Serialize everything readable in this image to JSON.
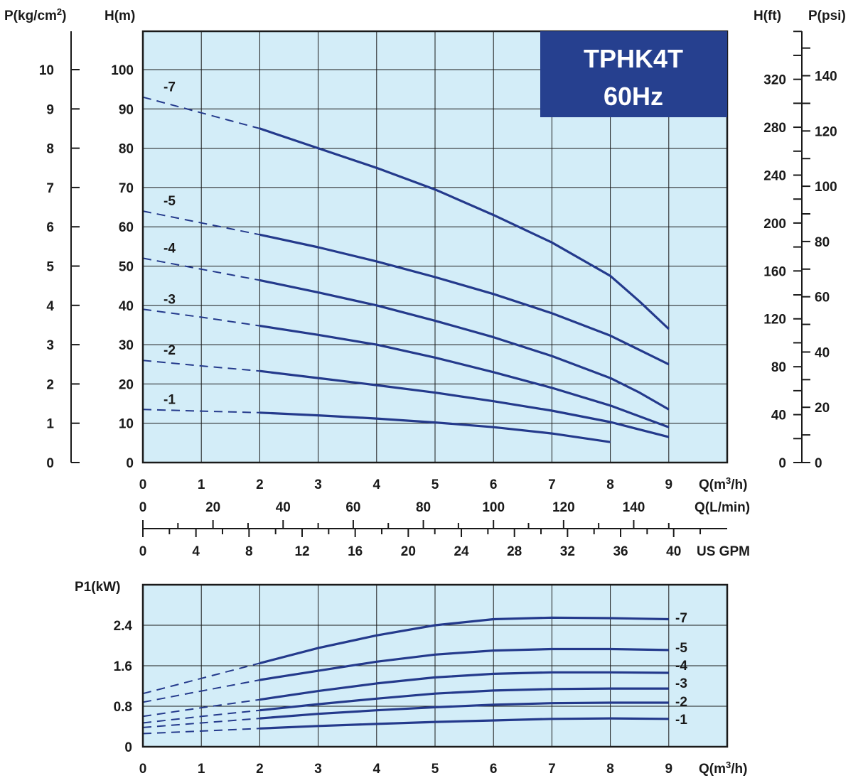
{
  "badge": {
    "model": "TPHK4T",
    "freq": "60Hz",
    "bg_color": "#26408f"
  },
  "colors": {
    "plot_bg": "#d3edf8",
    "curve": "#243a8c",
    "grid": "#1a1a1a"
  },
  "chart_data": [
    {
      "type": "line",
      "title": "",
      "xlabel": "Q(m3/h)",
      "ylabel": "H(m)",
      "xlim": [
        0,
        10
      ],
      "ylim": [
        0,
        110
      ],
      "grid": true,
      "xticks": [
        "0",
        "1",
        "2",
        "3",
        "4",
        "5",
        "6",
        "7",
        "8",
        "9"
      ],
      "yticks": [
        "0",
        "10",
        "20",
        "30",
        "40",
        "50",
        "60",
        "70",
        "80",
        "90",
        "100"
      ],
      "axis_labels": {
        "left_outer": "P(kg/cm2)",
        "left_inner": "H(m)",
        "right_inner": "H(ft)",
        "right_outer": "P(psi)",
        "x_m3h": "Q(m3/h)",
        "x_lmin": "Q(L/min)",
        "x_gpm": "US GPM"
      },
      "kgcm2_ticks": [
        "0",
        "1",
        "2",
        "3",
        "4",
        "5",
        "6",
        "7",
        "8",
        "9",
        "10"
      ],
      "ft_ticks": [
        "0",
        "40",
        "80",
        "120",
        "160",
        "200",
        "240",
        "280",
        "320"
      ],
      "psi_ticks": [
        "0",
        "20",
        "40",
        "60",
        "80",
        "100",
        "120",
        "140"
      ],
      "lmin_ticks": [
        "0",
        "20",
        "40",
        "60",
        "80",
        "100",
        "120",
        "140"
      ],
      "gpm_ticks": [
        "0",
        "4",
        "8",
        "12",
        "16",
        "20",
        "24",
        "28",
        "32",
        "36",
        "40"
      ],
      "series": [
        {
          "name": "-7",
          "dashed_until": 2,
          "x": [
            0,
            1,
            2,
            3,
            4,
            5,
            6,
            7,
            8,
            8.5,
            9
          ],
          "y": [
            93,
            89,
            85,
            80,
            75,
            69.5,
            63,
            56,
            47.5,
            41,
            34
          ]
        },
        {
          "name": "-5",
          "dashed_until": 2,
          "x": [
            0,
            1,
            2,
            3,
            4,
            5,
            6,
            7,
            8,
            9
          ],
          "y": [
            64,
            61,
            58,
            54.8,
            51.2,
            47.2,
            42.9,
            38,
            32.3,
            25
          ]
        },
        {
          "name": "-4",
          "dashed_until": 2,
          "x": [
            0,
            1,
            2,
            3,
            4,
            5,
            6,
            7,
            8,
            8.5,
            9
          ],
          "y": [
            52,
            49.2,
            46.4,
            43.3,
            40,
            36.1,
            31.9,
            27.1,
            21.5,
            17.8,
            13.5
          ]
        },
        {
          "name": "-3",
          "dashed_until": 2,
          "x": [
            0,
            1,
            2,
            3,
            4,
            5,
            6,
            7,
            8,
            9
          ],
          "y": [
            39,
            37,
            34.8,
            32.5,
            30,
            26.7,
            23,
            19,
            14.5,
            9
          ]
        },
        {
          "name": "-2",
          "dashed_until": 2,
          "x": [
            0,
            1,
            2,
            3,
            4,
            5,
            6,
            7,
            8,
            9
          ],
          "y": [
            26,
            24.6,
            23.3,
            21.5,
            19.7,
            17.8,
            15.6,
            13.2,
            10.3,
            6.5
          ]
        },
        {
          "name": "-1",
          "dashed_until": 2,
          "x": [
            0,
            1,
            2,
            3,
            4,
            5,
            6,
            7,
            8
          ],
          "y": [
            13.5,
            13.1,
            12.7,
            12,
            11.2,
            10.2,
            9,
            7.4,
            5.2
          ]
        }
      ]
    },
    {
      "type": "line",
      "title": "",
      "xlabel": "Q(m3/h)",
      "ylabel": "P1(kW)",
      "xlim": [
        0,
        10
      ],
      "ylim": [
        0,
        3.2
      ],
      "grid": true,
      "xticks": [
        "0",
        "1",
        "2",
        "3",
        "4",
        "5",
        "6",
        "7",
        "8",
        "9"
      ],
      "yticks": [
        "0",
        "0.8",
        "1.6",
        "2.4"
      ],
      "ytick_values": [
        0,
        0.8,
        1.6,
        2.4
      ],
      "series": [
        {
          "name": "-7",
          "dashed_until": 2,
          "x": [
            0,
            1,
            2,
            3,
            4,
            5,
            6,
            7,
            8,
            9
          ],
          "y": [
            1.05,
            1.35,
            1.65,
            1.95,
            2.2,
            2.4,
            2.52,
            2.55,
            2.54,
            2.52
          ]
        },
        {
          "name": "-5",
          "dashed_until": 2,
          "x": [
            0,
            1,
            2,
            3,
            4,
            5,
            6,
            7,
            8,
            9
          ],
          "y": [
            0.88,
            1.1,
            1.32,
            1.5,
            1.68,
            1.82,
            1.9,
            1.93,
            1.93,
            1.91
          ]
        },
        {
          "name": "-4",
          "dashed_until": 2,
          "x": [
            0,
            1,
            2,
            3,
            4,
            5,
            6,
            7,
            8,
            9
          ],
          "y": [
            0.6,
            0.77,
            0.93,
            1.1,
            1.25,
            1.37,
            1.44,
            1.47,
            1.47,
            1.46
          ]
        },
        {
          "name": "-3",
          "dashed_until": 2,
          "x": [
            0,
            1,
            2,
            3,
            4,
            5,
            6,
            7,
            8,
            9
          ],
          "y": [
            0.47,
            0.6,
            0.72,
            0.84,
            0.95,
            1.05,
            1.11,
            1.14,
            1.15,
            1.15
          ]
        },
        {
          "name": "-2",
          "dashed_until": 2,
          "x": [
            0,
            1,
            2,
            3,
            4,
            5,
            6,
            7,
            8,
            9
          ],
          "y": [
            0.38,
            0.47,
            0.56,
            0.65,
            0.72,
            0.78,
            0.83,
            0.86,
            0.87,
            0.87
          ]
        },
        {
          "name": "-1",
          "dashed_until": 2,
          "x": [
            0,
            1,
            2,
            3,
            4,
            5,
            6,
            7,
            8,
            9
          ],
          "y": [
            0.26,
            0.31,
            0.36,
            0.41,
            0.45,
            0.49,
            0.52,
            0.55,
            0.56,
            0.55
          ]
        }
      ]
    }
  ]
}
